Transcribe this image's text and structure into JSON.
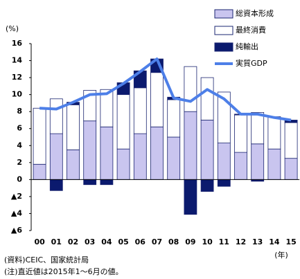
{
  "chart_data": {
    "type": "bar",
    "y_unit_label": "(%)",
    "x_unit_label": "(年)",
    "notes": [
      "(資料)CEIC、国家統計局",
      "(注)直近値は2015年1～6月の値。"
    ],
    "categories": [
      "00",
      "01",
      "02",
      "03",
      "04",
      "05",
      "06",
      "07",
      "08",
      "09",
      "10",
      "11",
      "12",
      "13",
      "14",
      "15"
    ],
    "series": [
      {
        "name": "総資本形成",
        "color": "#c9c5ef",
        "kind": "bar",
        "values": [
          1.8,
          5.4,
          3.5,
          6.9,
          6.2,
          3.6,
          5.4,
          6.2,
          5.0,
          8.0,
          7.0,
          4.3,
          3.2,
          4.2,
          3.6,
          2.5
        ]
      },
      {
        "name": "最終消費",
        "color": "#ffffff",
        "kind": "bar",
        "values": [
          6.6,
          4.1,
          5.3,
          3.6,
          4.4,
          6.4,
          5.4,
          6.4,
          4.4,
          5.3,
          5.0,
          6.0,
          4.4,
          3.7,
          3.8,
          4.2
        ]
      },
      {
        "name": "純輸出",
        "color": "#0b1a6e",
        "kind": "bar",
        "values": [
          0,
          -1.3,
          0.3,
          -0.6,
          -0.6,
          1.4,
          2.0,
          1.6,
          0.3,
          -4.1,
          -1.4,
          -0.8,
          0.1,
          -0.2,
          0,
          0.3
        ]
      },
      {
        "name": "実質GDP",
        "color": "#4d7fe8",
        "kind": "line",
        "values": [
          8.4,
          8.3,
          9.1,
          10.0,
          10.1,
          11.3,
          12.7,
          14.2,
          9.6,
          9.2,
          10.6,
          9.5,
          7.7,
          7.7,
          7.3,
          7.0
        ]
      }
    ],
    "ylim": [
      -6,
      16
    ],
    "yticks": [
      {
        "value": -6,
        "label": "▲6"
      },
      {
        "value": -4,
        "label": "▲4"
      },
      {
        "value": -2,
        "label": "▲2"
      },
      0,
      2,
      4,
      6,
      8,
      10,
      12,
      14,
      16
    ]
  }
}
